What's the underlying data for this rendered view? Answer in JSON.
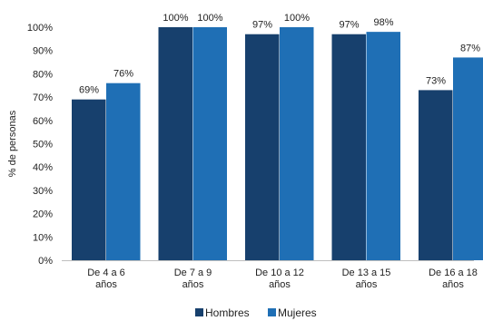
{
  "chart_data": {
    "type": "bar",
    "ylabel": "% de personas",
    "ylim": [
      0,
      100
    ],
    "yticks": [
      "0%",
      "10%",
      "20%",
      "30%",
      "40%",
      "50%",
      "60%",
      "70%",
      "80%",
      "90%",
      "100%"
    ],
    "categories": [
      [
        "De 4 a 6",
        "años"
      ],
      [
        "De 7 a 9",
        "años"
      ],
      [
        "De 10 a 12",
        "años"
      ],
      [
        "De 13 a 15",
        "años"
      ],
      [
        "De 16 a 18",
        "años"
      ]
    ],
    "series": [
      {
        "name": "Hombres",
        "color": "#17406d",
        "values": [
          69,
          100,
          97,
          97,
          73
        ],
        "labels": [
          "69%",
          "100%",
          "97%",
          "97%",
          "73%"
        ]
      },
      {
        "name": "Mujeres",
        "color": "#1f6fb5",
        "values": [
          76,
          100,
          100,
          98,
          87
        ],
        "labels": [
          "76%",
          "100%",
          "100%",
          "98%",
          "87%"
        ]
      }
    ],
    "grid": false,
    "legend": "bottom"
  }
}
